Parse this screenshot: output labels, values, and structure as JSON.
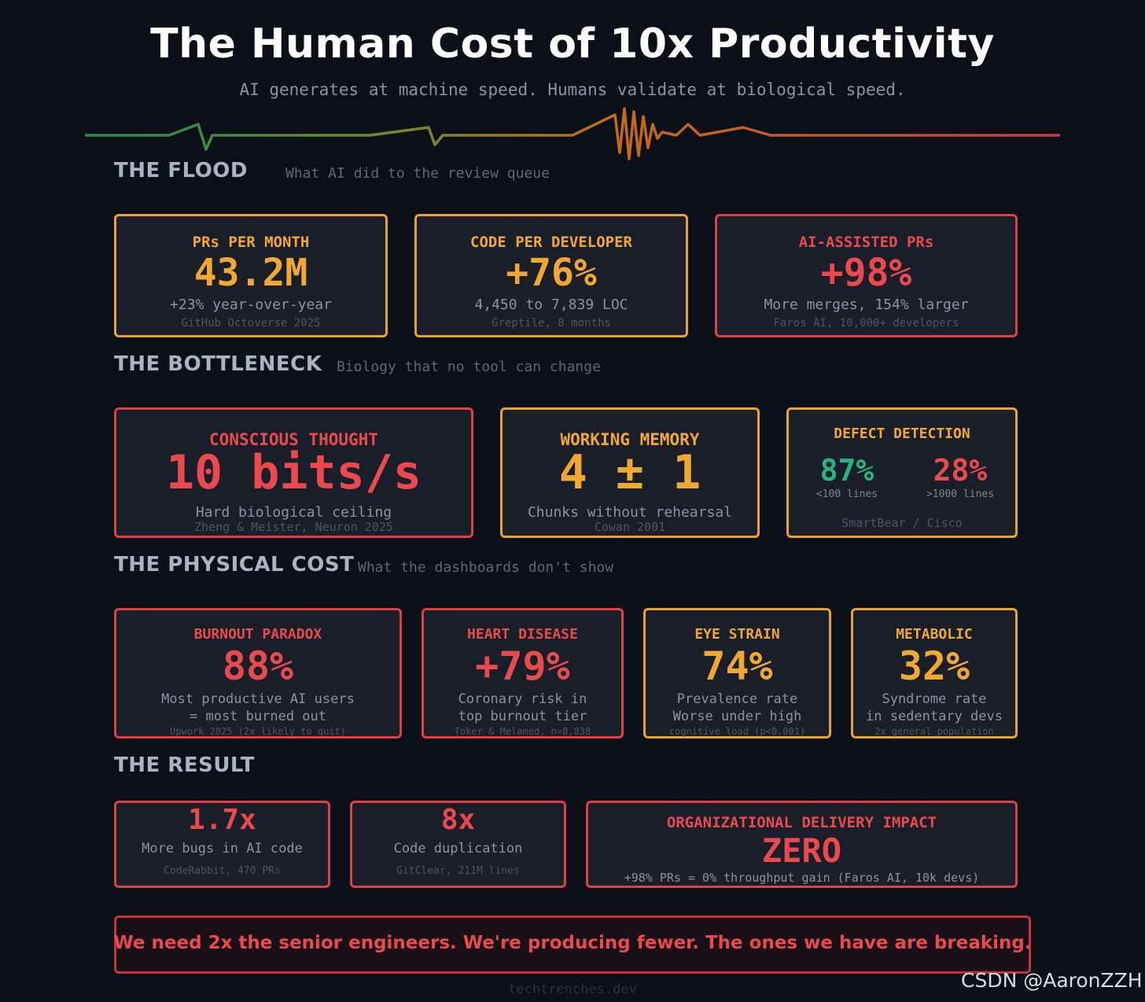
{
  "header": {
    "title": "The Human Cost of 10x Productivity",
    "subtitle": "AI generates at machine speed. Humans validate at biological speed."
  },
  "flood": {
    "title": "THE FLOOD",
    "subtitle": "What AI did to the review queue",
    "cards": [
      {
        "label": "PRs PER MONTH",
        "value": "43.2M",
        "desc": "+23% year-over-year",
        "source": "GitHub Octoverse 2025"
      },
      {
        "label": "CODE PER DEVELOPER",
        "value": "+76%",
        "desc": "4,450 to 7,839 LOC",
        "source": "Greptile, 8 months"
      },
      {
        "label": "AI-ASSISTED PRs",
        "value": "+98%",
        "desc": "More merges, 154% larger",
        "source": "Faros AI, 10,000+ developers"
      }
    ]
  },
  "bottleneck": {
    "title": "THE BOTTLENECK",
    "subtitle": "Biology that no tool can change",
    "thought": {
      "label": "CONSCIOUS THOUGHT",
      "value": "10 bits/s",
      "desc": "Hard biological ceiling",
      "source": "Zheng & Meister, Neuron 2025"
    },
    "memory": {
      "label": "WORKING MEMORY",
      "value": "4 ± 1",
      "desc": "Chunks without rehearsal",
      "source": "Cowan 2001"
    },
    "defect": {
      "label": "DEFECT DETECTION",
      "small_value": "87%",
      "small_caption": "<100 lines",
      "large_value": "28%",
      "large_caption": ">1000 lines",
      "source": "SmartBear / Cisco"
    }
  },
  "physical": {
    "title": "THE PHYSICAL COST",
    "subtitle": "What the dashboards don't show",
    "cards": [
      {
        "label": "BURNOUT PARADOX",
        "value": "88%",
        "desc1": "Most productive AI users",
        "desc2": "= most burned out",
        "source": "Upwork 2025 (2x likely to quit)"
      },
      {
        "label": "HEART DISEASE",
        "value": "+79%",
        "desc1": "Coronary risk in",
        "desc2": "top burnout tier",
        "source": "Toker & Melamed, n=8,838"
      },
      {
        "label": "EYE STRAIN",
        "value": "74%",
        "desc1": "Prevalence rate",
        "desc2": "Worse under high",
        "source": "cognitive load (p<0.001)"
      },
      {
        "label": "METABOLIC",
        "value": "32%",
        "desc1": "Syndrome rate",
        "desc2": "in sedentary devs",
        "source": "2x general population"
      }
    ]
  },
  "result": {
    "title": "THE RESULT",
    "bugs": {
      "value": "1.7x",
      "desc": "More bugs in AI code",
      "source": "CodeRabbit, 470 PRs"
    },
    "dup": {
      "value": "8x",
      "desc": "Code duplication",
      "source": "GitClear, 211M lines"
    },
    "impact": {
      "label": "ORGANIZATIONAL DELIVERY IMPACT",
      "value": "ZERO",
      "desc": "+98% PRs = 0% throughput gain (Faros AI, 10k devs)"
    }
  },
  "banner": "We need 2x the senior engineers. We're producing fewer. The ones we have are breaking.",
  "footer": "techtrenches.dev",
  "watermark": "CSDN @AaronZZH",
  "colors": {
    "amber": "#f0a830",
    "red": "#ea4a4f",
    "green": "#25b47e",
    "background": "#0b0f17"
  }
}
